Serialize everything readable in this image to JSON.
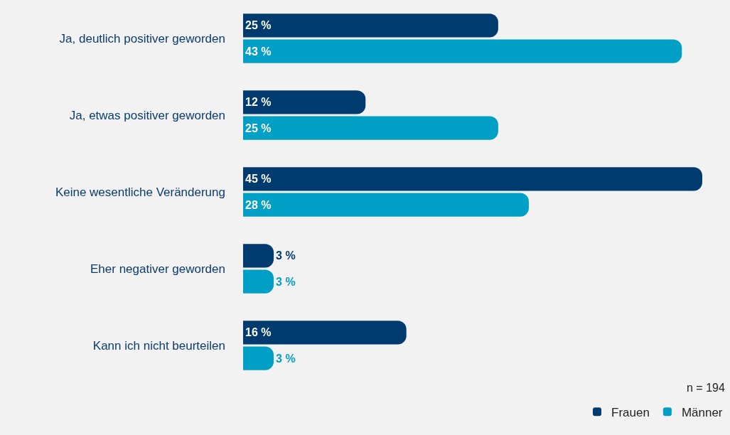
{
  "chart_data": {
    "type": "bar",
    "orientation": "horizontal",
    "categories": [
      "Ja, deutlich positiver geworden",
      "Ja, etwas positiver geworden",
      "Keine wesentliche Veränderung",
      "Eher negativer geworden",
      "Kann ich nicht beurteilen"
    ],
    "series": [
      {
        "name": "Frauen",
        "color": "#003b6f",
        "values": [
          25,
          12,
          45,
          3,
          16
        ],
        "value_labels": [
          "25 %",
          "12 %",
          "45 %",
          "3 %",
          "16 %"
        ]
      },
      {
        "name": "Männer",
        "color": "#00a0c6",
        "values": [
          43,
          25,
          28,
          3,
          3
        ],
        "value_labels": [
          "43 %",
          "25 %",
          "28 %",
          "3 %",
          "3 %"
        ]
      }
    ],
    "tick_labels": "y",
    "legend": "bottom right",
    "annotations": [
      "n = 194"
    ]
  }
}
